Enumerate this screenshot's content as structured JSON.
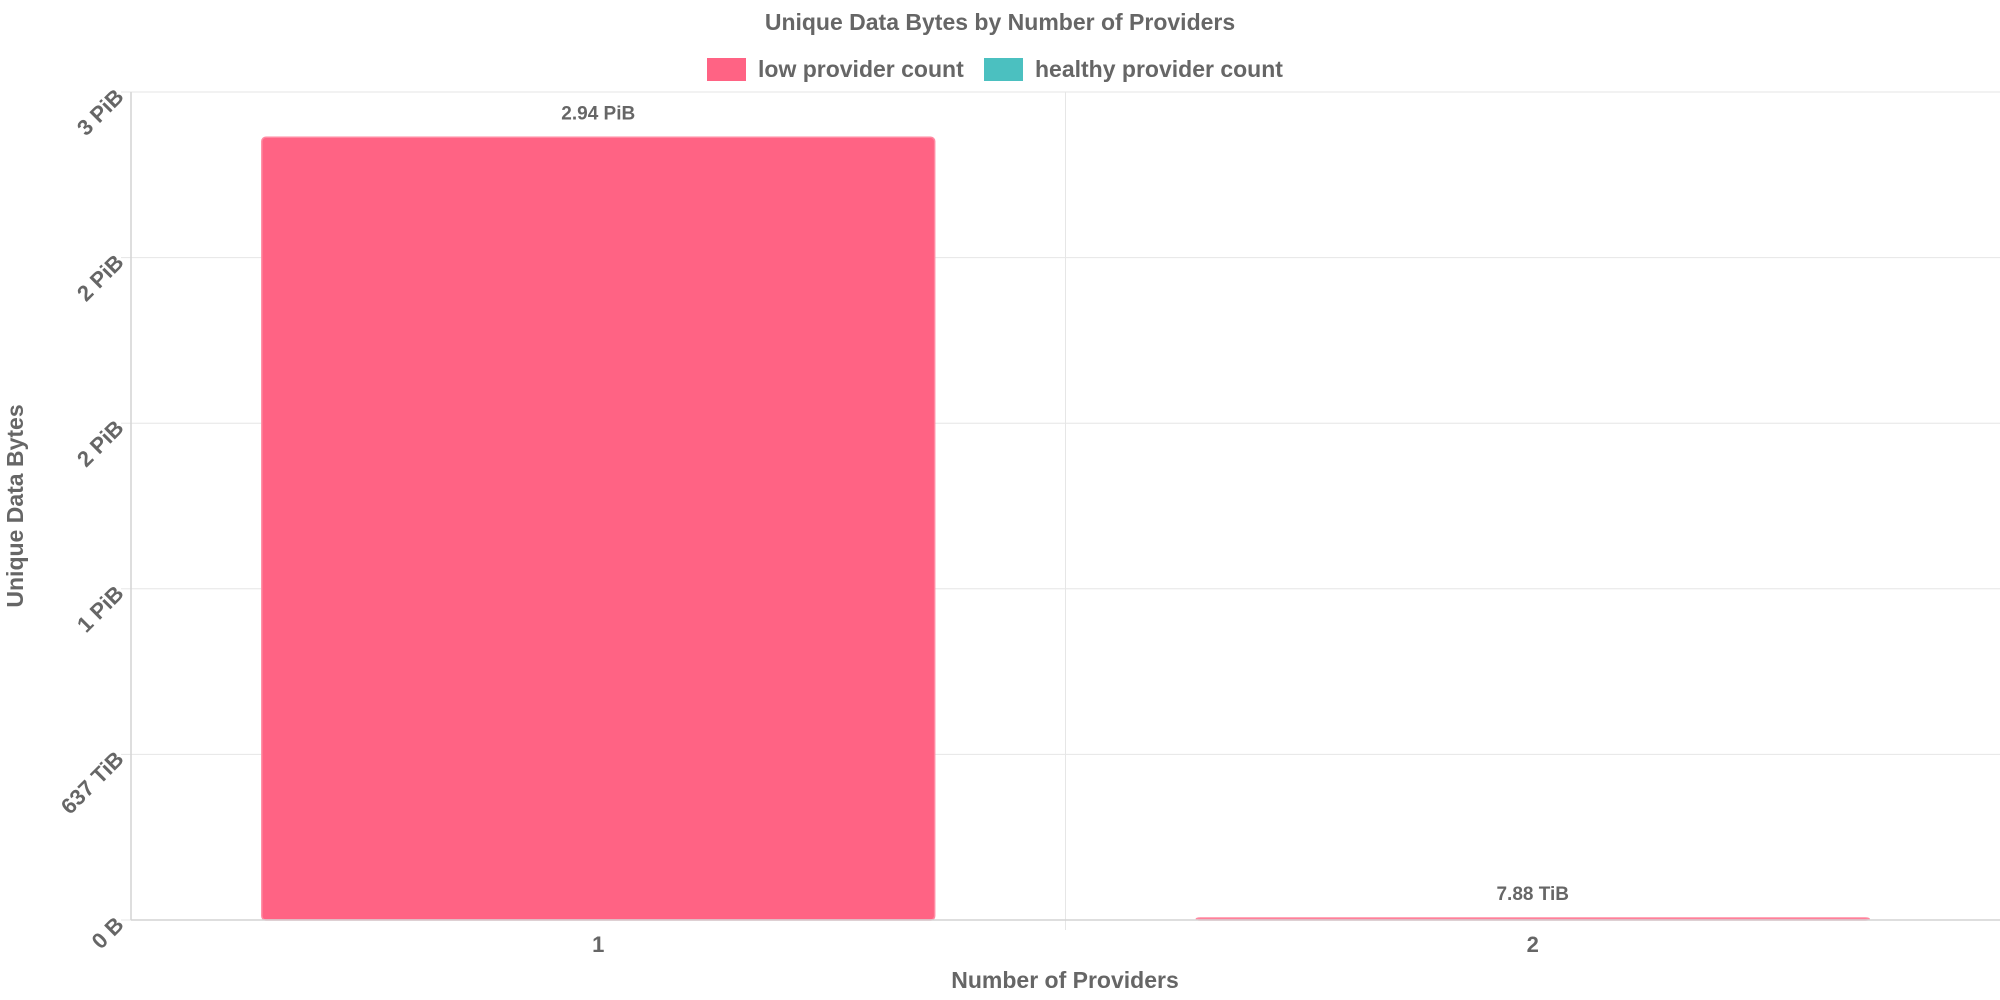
{
  "chart_data": {
    "type": "bar",
    "title": "Unique Data Bytes by Number of Providers",
    "xlabel": "Number of Providers",
    "ylabel": "Unique Data Bytes",
    "categories": [
      "1",
      "2"
    ],
    "series": [
      {
        "name": "low provider count",
        "color": "#ff6384",
        "values": [
          2.94,
          0.0077
        ],
        "value_labels": [
          "2.94 PiB",
          "7.88 TiB"
        ]
      },
      {
        "name": "healthy provider count",
        "color": "#4bc0c0",
        "values": [
          0,
          0
        ],
        "value_labels": [
          "",
          ""
        ]
      }
    ],
    "value_unit": "PiB",
    "y_ticks": [
      {
        "value": 0,
        "label": "0 B"
      },
      {
        "value": 0.622,
        "label": "637 TiB"
      },
      {
        "value": 1.244,
        "label": "1 PiB"
      },
      {
        "value": 1.866,
        "label": "2 PiB"
      },
      {
        "value": 2.488,
        "label": "2 PiB"
      },
      {
        "value": 3.11,
        "label": "3 PiB"
      }
    ],
    "ylim": [
      0,
      3.11
    ],
    "grid": true,
    "legend_position": "top"
  }
}
